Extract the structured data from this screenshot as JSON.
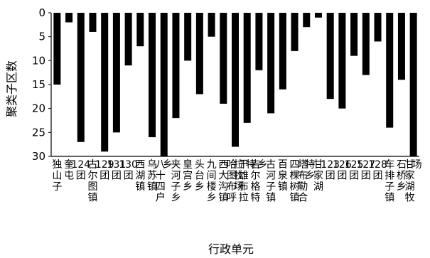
{
  "chart_data": {
    "type": "bar",
    "ylabel": "聚类子区数",
    "xlabel": "行政单元",
    "ylim": [
      0,
      30
    ],
    "y_inverted": true,
    "yticks": [
      0,
      5,
      10,
      15,
      20,
      25,
      30
    ],
    "grid": false,
    "bar_color": "#000000",
    "categories": [
      "独山子",
      "奎屯",
      "124团",
      "古尔图镇",
      "129团",
      "131团",
      "130团",
      "西湖镇",
      "乌苏镇",
      "八十四户乡",
      "夹河子乡",
      "皇宫乡",
      "头台乡",
      "九间楼乡",
      "西大沟镇",
      "哈图布呼拉牧场",
      "干雄布拉特",
      "吉尔格特乡",
      "古河子镇",
      "百泉镇",
      "四棵树镇",
      "塔布勒合特乡",
      "甘家湖",
      "123团",
      "126团",
      "125团",
      "127团",
      "128团",
      "车排子镇",
      "石桥乡",
      "甘家湖牧场"
    ],
    "values": [
      15,
      2,
      27,
      4,
      29,
      25,
      11,
      7,
      26,
      30,
      22,
      10,
      17,
      5,
      19,
      28,
      23,
      12,
      21,
      16,
      8,
      3,
      1,
      18,
      20,
      9,
      13,
      6,
      24,
      14,
      30
    ]
  }
}
